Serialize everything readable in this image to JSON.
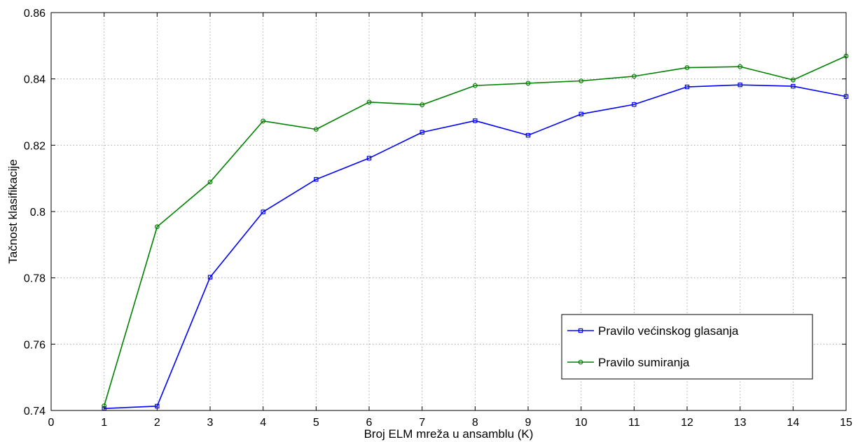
{
  "chart_data": {
    "type": "line",
    "title": "",
    "xlabel": "Broj ELM mreža u ansamblu (K)",
    "ylabel": "Tačnost klasifikacije",
    "xlim": [
      0,
      15
    ],
    "ylim": [
      0.74,
      0.86
    ],
    "x_ticks": [
      0,
      1,
      2,
      3,
      4,
      5,
      6,
      7,
      8,
      9,
      10,
      11,
      12,
      13,
      14,
      15
    ],
    "x_tick_labels": [
      "0",
      "1",
      "2",
      "3",
      "4",
      "5",
      "6",
      "7",
      "8",
      "9",
      "10",
      "11",
      "12",
      "13",
      "14",
      "15"
    ],
    "y_ticks": [
      0.74,
      0.76,
      0.78,
      0.8,
      0.82,
      0.84,
      0.86
    ],
    "y_tick_labels": [
      "0.74",
      "0.76",
      "0.78",
      "0.8",
      "0.82",
      "0.84",
      "0.86"
    ],
    "grid": true,
    "legend_position": "bottom-right",
    "x": [
      1,
      2,
      3,
      4,
      5,
      6,
      7,
      8,
      9,
      10,
      11,
      12,
      13,
      14,
      15
    ],
    "series": [
      {
        "name": "Pravilo većinskog glasanja",
        "color": "#0000ff",
        "marker": "square",
        "values": [
          0.7406,
          0.7413,
          0.7802,
          0.7999,
          0.8097,
          0.8161,
          0.8239,
          0.8274,
          0.823,
          0.8294,
          0.8323,
          0.8376,
          0.8382,
          0.8378,
          0.8347
        ]
      },
      {
        "name": "Pravilo sumiranja",
        "color": "#008000",
        "marker": "circle",
        "values": [
          0.7414,
          0.7954,
          0.8089,
          0.8273,
          0.8248,
          0.833,
          0.8322,
          0.838,
          0.8387,
          0.8394,
          0.8408,
          0.8434,
          0.8437,
          0.8397,
          0.8469
        ]
      }
    ]
  }
}
